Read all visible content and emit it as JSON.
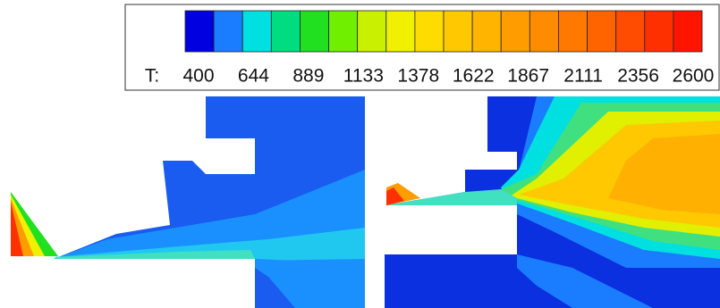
{
  "legend": {
    "label": "T:",
    "ticks": [
      400,
      644,
      889,
      1133,
      1378,
      1622,
      1867,
      2111,
      2356,
      2600
    ],
    "colors": [
      "#0000e0",
      "#1a7cff",
      "#00e0e0",
      "#00dd80",
      "#20e020",
      "#70f000",
      "#c8f000",
      "#f0f000",
      "#ffdc00",
      "#ffc800",
      "#ffb400",
      "#ff9c00",
      "#ff8c00",
      "#ff7800",
      "#ff6400",
      "#ff4c00",
      "#ff3000",
      "#ff1400"
    ]
  }
}
